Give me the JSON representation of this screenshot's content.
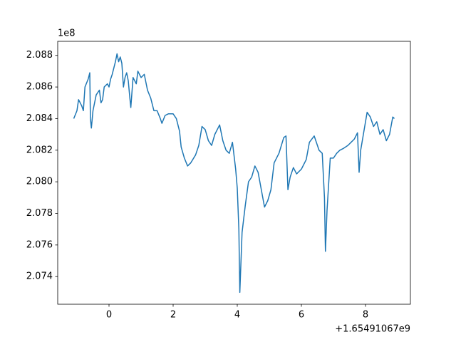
{
  "chart_data": {
    "type": "line",
    "y_offset_label": "1e8",
    "x_offset_label": "+1.65491067e9",
    "color": "#1f77b4",
    "xlim": [
      -1.6,
      9.4
    ],
    "xticks": [
      0,
      2,
      4,
      6,
      8
    ],
    "ylim": [
      2.07225,
      2.08889
    ],
    "yticks": [
      2.074,
      2.076,
      2.078,
      {
        "value": 2.08,
        "label": "2.080"
      },
      2.082,
      2.084,
      2.086,
      2.088
    ],
    "x": [
      -1.1,
      -1.0,
      -0.95,
      -0.85,
      -0.8,
      -0.75,
      -0.65,
      -0.6,
      -0.58,
      -0.55,
      -0.5,
      -0.4,
      -0.3,
      -0.25,
      -0.2,
      -0.15,
      -0.05,
      0.0,
      0.05,
      0.1,
      0.2,
      0.25,
      0.3,
      0.35,
      0.4,
      0.45,
      0.5,
      0.55,
      0.6,
      0.65,
      0.68,
      0.75,
      0.85,
      0.9,
      1.0,
      1.1,
      1.2,
      1.3,
      1.4,
      1.5,
      1.6,
      1.65,
      1.75,
      1.85,
      2.0,
      2.1,
      2.2,
      2.25,
      2.35,
      2.45,
      2.55,
      2.7,
      2.8,
      2.9,
      3.0,
      3.1,
      3.2,
      3.3,
      3.45,
      3.55,
      3.65,
      3.75,
      3.85,
      3.95,
      4.0,
      4.05,
      4.08,
      4.15,
      4.25,
      4.35,
      4.45,
      4.55,
      4.65,
      4.75,
      4.85,
      4.95,
      5.05,
      5.15,
      5.3,
      5.45,
      5.52,
      5.58,
      5.65,
      5.75,
      5.85,
      6.0,
      6.15,
      6.25,
      6.4,
      6.55,
      6.65,
      6.72,
      6.75,
      6.8,
      6.9,
      7.0,
      7.1,
      7.2,
      7.3,
      7.45,
      7.55,
      7.65,
      7.75,
      7.8,
      7.85,
      7.95,
      8.05,
      8.15,
      8.25,
      8.35,
      8.45,
      8.55,
      8.65,
      8.75,
      8.85,
      8.9
    ],
    "values": [
      2.084,
      2.0845,
      2.0852,
      2.0848,
      2.0845,
      2.086,
      2.0865,
      2.0869,
      2.084,
      2.0834,
      2.0845,
      2.0855,
      2.0858,
      2.085,
      2.0852,
      2.086,
      2.0862,
      2.086,
      2.0865,
      2.0868,
      2.0876,
      2.0881,
      2.0876,
      2.0879,
      2.0875,
      2.086,
      2.0866,
      2.0869,
      2.0864,
      2.0853,
      2.0847,
      2.0866,
      2.0862,
      2.087,
      2.0866,
      2.0868,
      2.0858,
      2.0853,
      2.0845,
      2.0845,
      2.084,
      2.0837,
      2.0842,
      2.0843,
      2.0843,
      2.084,
      2.0832,
      2.0822,
      2.0815,
      2.081,
      2.0812,
      2.0817,
      2.0823,
      2.0835,
      2.0833,
      2.0826,
      2.0823,
      2.083,
      2.0836,
      2.0826,
      2.082,
      2.0818,
      2.0825,
      2.0808,
      2.0796,
      2.077,
      2.073,
      2.0768,
      2.0785,
      2.08,
      2.0803,
      2.081,
      2.0806,
      2.0795,
      2.0784,
      2.0788,
      2.0795,
      2.0812,
      2.0818,
      2.0828,
      2.0829,
      2.0795,
      2.0803,
      2.0809,
      2.0805,
      2.0808,
      2.0814,
      2.0825,
      2.0829,
      2.082,
      2.0818,
      2.079,
      2.0756,
      2.0782,
      2.0815,
      2.0815,
      2.0818,
      2.082,
      2.0821,
      2.0823,
      2.0825,
      2.0827,
      2.0831,
      2.0806,
      2.082,
      2.0832,
      2.0844,
      2.0841,
      2.0835,
      2.0838,
      2.083,
      2.0833,
      2.0826,
      2.083,
      2.0841,
      2.084
    ]
  }
}
